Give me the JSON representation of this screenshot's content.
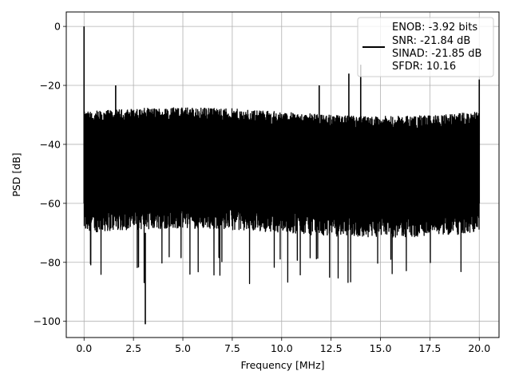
{
  "chart_data": {
    "type": "line",
    "xlabel": "Frequency [MHz]",
    "ylabel": "PSD [dB]",
    "xlim": [
      -0.9,
      21.0
    ],
    "ylim": [
      -105.5,
      4.9
    ],
    "xticks": [
      0.0,
      2.5,
      5.0,
      7.5,
      10.0,
      12.5,
      15.0,
      17.5,
      20.0
    ],
    "xtick_labels": [
      "0.0",
      "2.5",
      "5.0",
      "7.5",
      "10.0",
      "12.5",
      "15.0",
      "17.5",
      "20.0"
    ],
    "yticks": [
      0,
      -20,
      -40,
      -60,
      -80,
      -100
    ],
    "ytick_labels": [
      "0",
      "−20",
      "−40",
      "−60",
      "−80",
      "−100"
    ],
    "grid": true,
    "legend_position": "top-right",
    "series": [
      {
        "color": "#000000",
        "x_range": [
          0.0,
          20.0
        ],
        "noise_floor_upper": -30,
        "noise_floor_lower": -70,
        "peaks": [
          {
            "x": 0.0,
            "y": 0.0
          },
          {
            "x": 1.6,
            "y": -20
          },
          {
            "x": 3.1,
            "y": -101
          },
          {
            "x": 11.9,
            "y": -20
          },
          {
            "x": 13.4,
            "y": -16
          },
          {
            "x": 14.0,
            "y": -13
          },
          {
            "x": 20.0,
            "y": -18
          }
        ]
      }
    ],
    "legend": [
      "ENOB: -3.92 bits",
      "SNR: -21.84 dB",
      "SINAD: -21.85 dB",
      "SFDR: 10.16"
    ]
  }
}
